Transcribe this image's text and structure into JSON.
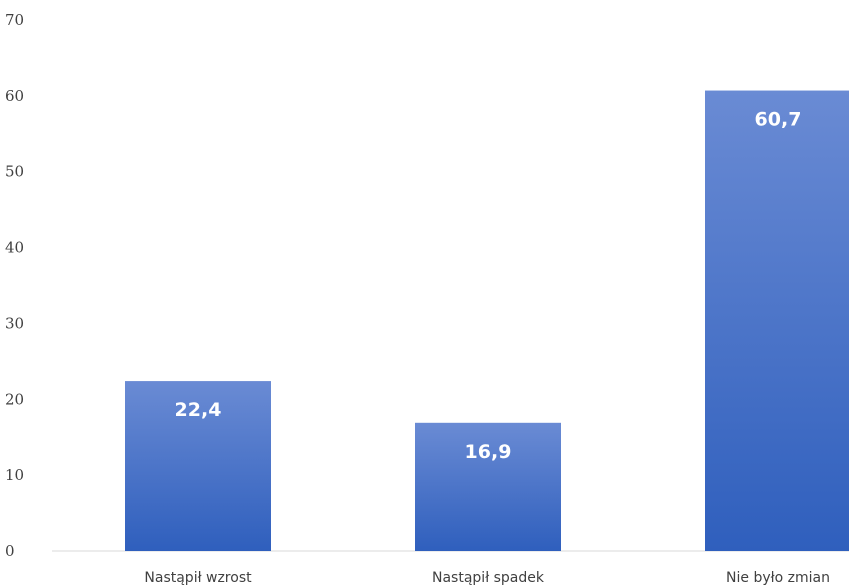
{
  "chart_data": {
    "type": "bar",
    "categories": [
      "Nastąpił wzrost",
      "Nastąpił spadek",
      "Nie było zmian"
    ],
    "values": [
      22.4,
      16.9,
      60.7
    ],
    "data_labels": [
      "22,4",
      "16,9",
      "60,7"
    ],
    "y_ticks": [
      "0",
      "10",
      "20",
      "30",
      "40",
      "50",
      "60",
      "70"
    ],
    "ylim": [
      0,
      70
    ],
    "grid": false,
    "legend": "none",
    "bar_color_top": "#6a8bd4",
    "bar_color_bottom": "#2f5fbd"
  }
}
